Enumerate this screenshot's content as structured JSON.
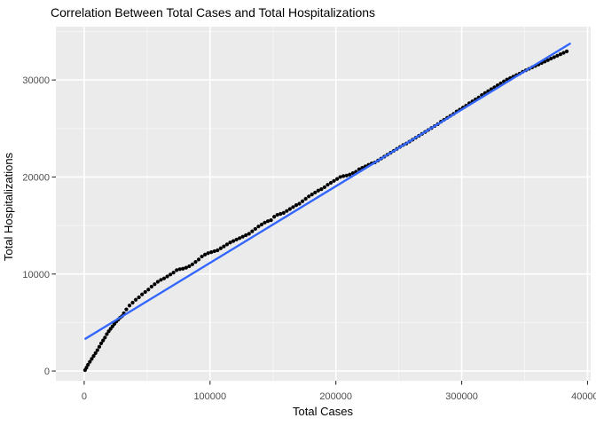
{
  "title": "Correlation Between Total Cases and Total Hospitalizations",
  "chart_data": {
    "type": "scatter",
    "title": "Correlation Between Total Cases and Total Hospitalizations",
    "xlabel": "Total Cases",
    "ylabel": "Total Hospitalizations",
    "xlim": [
      -22500,
      402500
    ],
    "ylim": [
      -1000,
      35500
    ],
    "x_ticks": [
      0,
      100000,
      200000,
      300000,
      400000
    ],
    "x_tick_labels": [
      "0",
      "100000",
      "200000",
      "300000",
      "400000"
    ],
    "x_minor_ticks": [
      50000,
      150000,
      250000,
      350000
    ],
    "y_ticks": [
      0,
      10000,
      20000,
      30000
    ],
    "y_tick_labels": [
      "0",
      "10000",
      "20000",
      "30000"
    ],
    "y_minor_ticks": [
      5000,
      15000,
      25000,
      35000
    ],
    "grid": {
      "major": true,
      "minor": true
    },
    "legend_position": "none",
    "colors": {
      "panel_bg": "#ebebeb",
      "grid_major": "#ffffff",
      "grid_minor": "#f5f5f5",
      "points": "#000000",
      "smooth_line": "#3366ff",
      "tick_label": "#4d4d4d",
      "tick_mark": "#333333",
      "text": "#000000"
    },
    "series": [
      {
        "name": "observations",
        "type": "scatter",
        "points": [
          [
            700,
            100
          ],
          [
            1800,
            350
          ],
          [
            3000,
            650
          ],
          [
            4500,
            950
          ],
          [
            6000,
            1250
          ],
          [
            7500,
            1550
          ],
          [
            9000,
            1850
          ],
          [
            10500,
            2150
          ],
          [
            12000,
            2500
          ],
          [
            13500,
            2850
          ],
          [
            15000,
            3150
          ],
          [
            16500,
            3450
          ],
          [
            18000,
            3800
          ],
          [
            19500,
            4100
          ],
          [
            21000,
            4350
          ],
          [
            22500,
            4600
          ],
          [
            24000,
            4850
          ],
          [
            25500,
            5100
          ],
          [
            27000,
            5300
          ],
          [
            28500,
            5500
          ],
          [
            30000,
            5650
          ],
          [
            31500,
            5950
          ],
          [
            33500,
            6350
          ],
          [
            36000,
            6750
          ],
          [
            38500,
            7050
          ],
          [
            41000,
            7350
          ],
          [
            43500,
            7600
          ],
          [
            46000,
            7900
          ],
          [
            48500,
            8150
          ],
          [
            51000,
            8400
          ],
          [
            53500,
            8700
          ],
          [
            56000,
            8950
          ],
          [
            58500,
            9200
          ],
          [
            61000,
            9400
          ],
          [
            63500,
            9550
          ],
          [
            66000,
            9750
          ],
          [
            68500,
            9950
          ],
          [
            71000,
            10150
          ],
          [
            73500,
            10400
          ],
          [
            76000,
            10500
          ],
          [
            78500,
            10550
          ],
          [
            81000,
            10650
          ],
          [
            83500,
            10800
          ],
          [
            86000,
            11000
          ],
          [
            88500,
            11250
          ],
          [
            91000,
            11500
          ],
          [
            93500,
            11800
          ],
          [
            96000,
            12000
          ],
          [
            98500,
            12150
          ],
          [
            101000,
            12250
          ],
          [
            103500,
            12350
          ],
          [
            106000,
            12450
          ],
          [
            108500,
            12650
          ],
          [
            111000,
            12850
          ],
          [
            113500,
            13050
          ],
          [
            116000,
            13250
          ],
          [
            118500,
            13400
          ],
          [
            121000,
            13550
          ],
          [
            123500,
            13700
          ],
          [
            126000,
            13850
          ],
          [
            128500,
            14000
          ],
          [
            131000,
            14150
          ],
          [
            133500,
            14400
          ],
          [
            136000,
            14650
          ],
          [
            138500,
            14900
          ],
          [
            141000,
            15100
          ],
          [
            143500,
            15300
          ],
          [
            146000,
            15450
          ],
          [
            148500,
            15550
          ],
          [
            151000,
            15900
          ],
          [
            153500,
            16100
          ],
          [
            156000,
            16200
          ],
          [
            158500,
            16300
          ],
          [
            161000,
            16500
          ],
          [
            163500,
            16700
          ],
          [
            166000,
            16900
          ],
          [
            168500,
            17100
          ],
          [
            171000,
            17250
          ],
          [
            173500,
            17500
          ],
          [
            176000,
            17750
          ],
          [
            178500,
            18000
          ],
          [
            181000,
            18200
          ],
          [
            183500,
            18400
          ],
          [
            186000,
            18600
          ],
          [
            188500,
            18750
          ],
          [
            191000,
            18950
          ],
          [
            193500,
            19200
          ],
          [
            196000,
            19400
          ],
          [
            198500,
            19600
          ],
          [
            201000,
            19800
          ],
          [
            203500,
            20000
          ],
          [
            206000,
            20100
          ],
          [
            208500,
            20150
          ],
          [
            211000,
            20250
          ],
          [
            213500,
            20400
          ],
          [
            216000,
            20550
          ],
          [
            218500,
            20800
          ],
          [
            221000,
            20950
          ],
          [
            223500,
            21100
          ],
          [
            226000,
            21250
          ],
          [
            228500,
            21400
          ],
          [
            231000,
            21500
          ],
          [
            233500,
            21700
          ],
          [
            236000,
            21900
          ],
          [
            238500,
            22100
          ],
          [
            241000,
            22300
          ],
          [
            243500,
            22500
          ],
          [
            246000,
            22700
          ],
          [
            248500,
            22900
          ],
          [
            251000,
            23100
          ],
          [
            253500,
            23300
          ],
          [
            256000,
            23450
          ],
          [
            258500,
            23650
          ],
          [
            261000,
            23850
          ],
          [
            263500,
            24050
          ],
          [
            266000,
            24250
          ],
          [
            268500,
            24450
          ],
          [
            271000,
            24650
          ],
          [
            273500,
            24850
          ],
          [
            276000,
            25050
          ],
          [
            278500,
            25250
          ],
          [
            281000,
            25450
          ],
          [
            283500,
            25700
          ],
          [
            286000,
            25900
          ],
          [
            288500,
            26100
          ],
          [
            291000,
            26300
          ],
          [
            293500,
            26500
          ],
          [
            296000,
            26750
          ],
          [
            298500,
            26950
          ],
          [
            301000,
            27150
          ],
          [
            303500,
            27350
          ],
          [
            306000,
            27600
          ],
          [
            308500,
            27800
          ],
          [
            311000,
            28000
          ],
          [
            313500,
            28200
          ],
          [
            316000,
            28450
          ],
          [
            318500,
            28650
          ],
          [
            321000,
            28850
          ],
          [
            323500,
            29050
          ],
          [
            326000,
            29250
          ],
          [
            328500,
            29450
          ],
          [
            331000,
            29650
          ],
          [
            333500,
            29850
          ],
          [
            336000,
            30050
          ],
          [
            338500,
            30200
          ],
          [
            341000,
            30350
          ],
          [
            343500,
            30500
          ],
          [
            346000,
            30650
          ],
          [
            348500,
            30850
          ],
          [
            351000,
            31000
          ],
          [
            353500,
            31150
          ],
          [
            356000,
            31300
          ],
          [
            358500,
            31450
          ],
          [
            361000,
            31600
          ],
          [
            363500,
            31750
          ],
          [
            366000,
            31900
          ],
          [
            368500,
            32050
          ],
          [
            371000,
            32200
          ],
          [
            373500,
            32350
          ],
          [
            376000,
            32500
          ],
          [
            378500,
            32650
          ],
          [
            381000,
            32800
          ],
          [
            383500,
            32950
          ]
        ]
      },
      {
        "name": "linear-fit",
        "type": "line",
        "points": [
          [
            1000,
            3330
          ],
          [
            386000,
            33740
          ]
        ]
      }
    ]
  }
}
